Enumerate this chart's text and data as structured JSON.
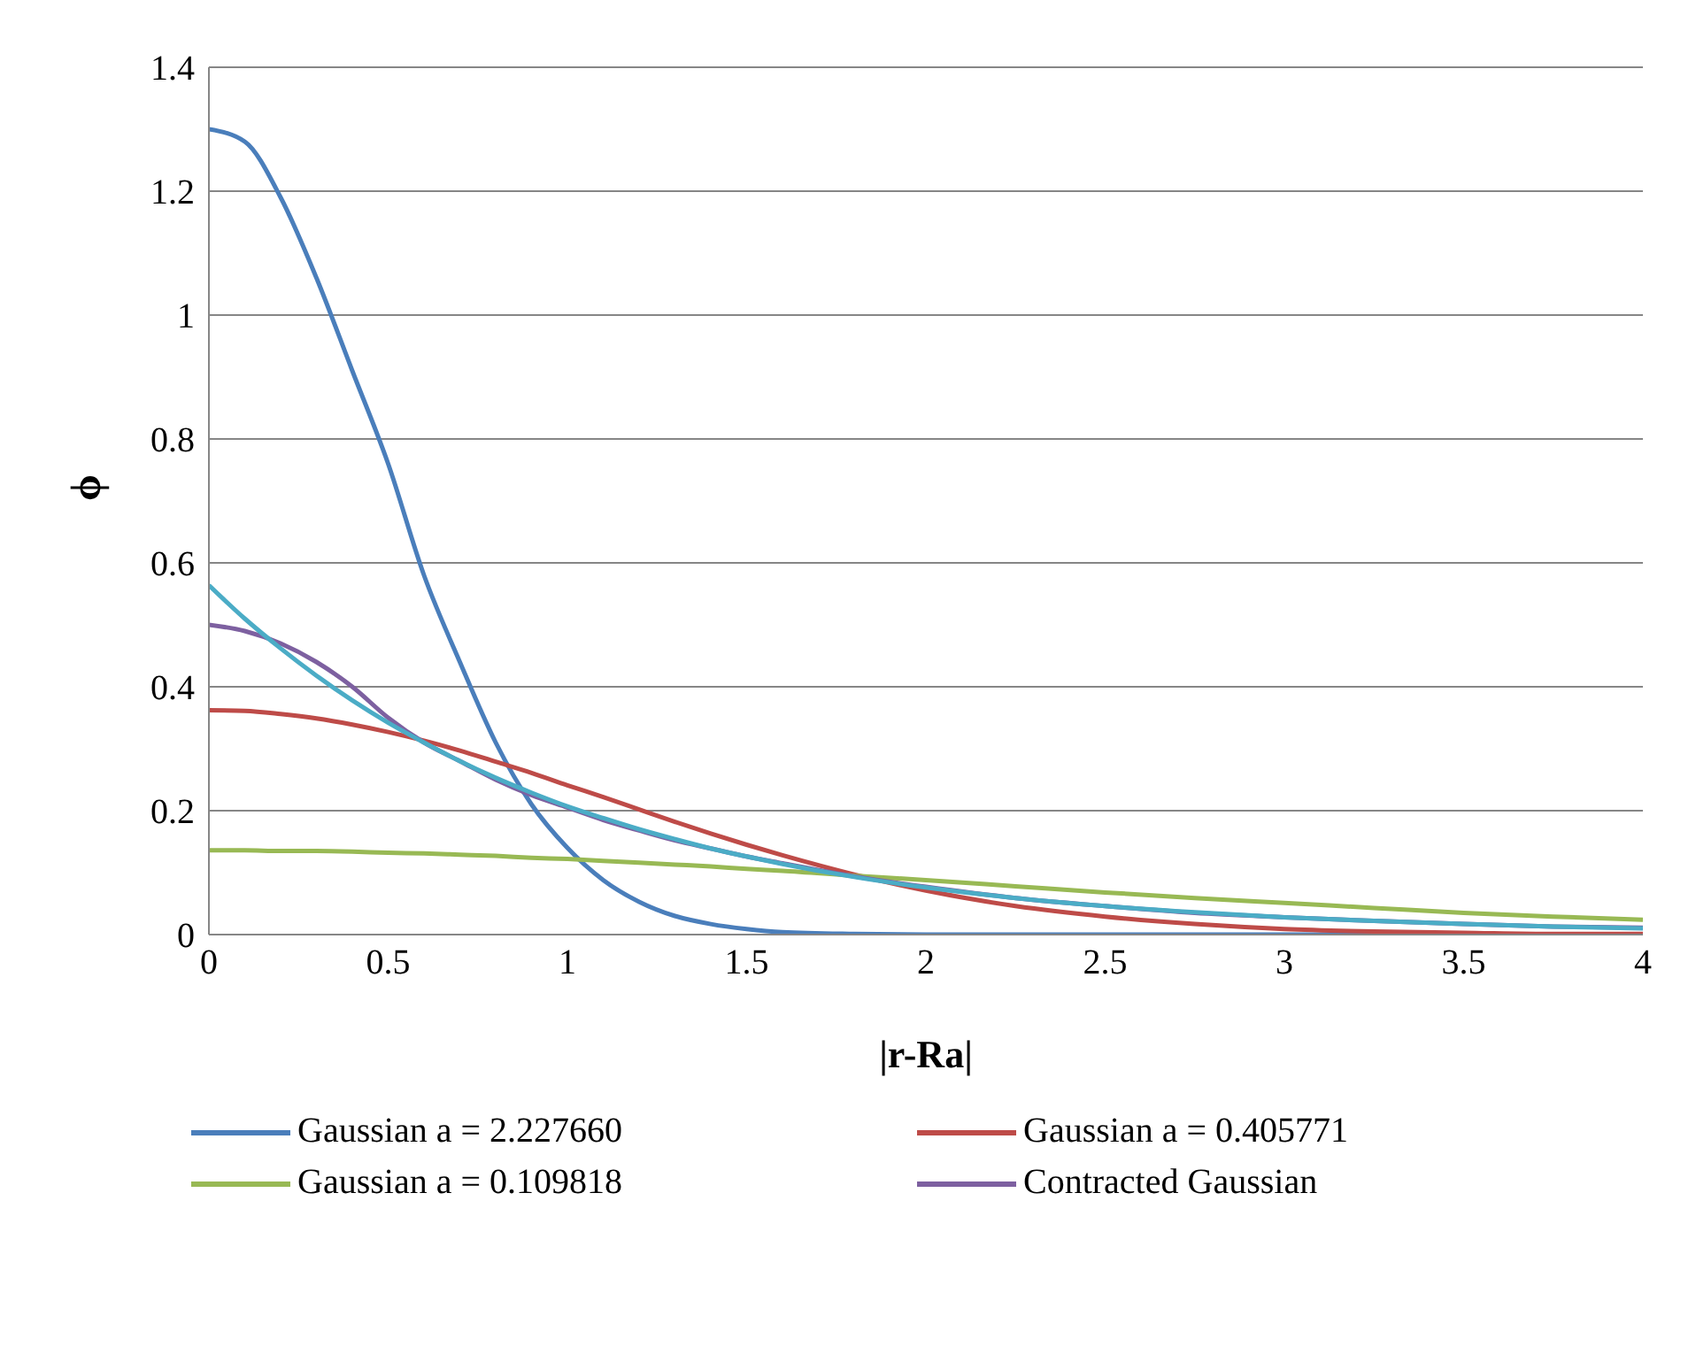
{
  "chart_data": {
    "type": "line",
    "xlabel": "|r-Ra|",
    "ylabel": "ϕ",
    "x": [
      0,
      0.1,
      0.2,
      0.3,
      0.4,
      0.5,
      0.6,
      0.7,
      0.8,
      0.9,
      1,
      1.1,
      1.2,
      1.3,
      1.4,
      1.5,
      1.6,
      1.8,
      2,
      2.25,
      2.5,
      2.75,
      3,
      3.25,
      3.5,
      3.75,
      4
    ],
    "series": [
      {
        "name": "Gaussian a = 2.227660",
        "color": "#4a7ebb",
        "values": [
          1.3,
          1.28,
          1.19,
          1.06,
          0.91,
          0.76,
          0.58,
          0.44,
          0.31,
          0.21,
          0.14,
          0.088,
          0.053,
          0.03,
          0.017,
          0.009,
          0.004,
          0.001,
          0,
          0,
          0,
          0,
          0,
          0,
          0,
          0,
          0
        ]
      },
      {
        "name": "Gaussian a = 0.405771",
        "color": "#be4b48",
        "values": [
          0.362,
          0.361,
          0.356,
          0.349,
          0.339,
          0.327,
          0.313,
          0.297,
          0.279,
          0.261,
          0.241,
          0.222,
          0.202,
          0.182,
          0.163,
          0.145,
          0.128,
          0.097,
          0.071,
          0.046,
          0.029,
          0.017,
          0.009,
          0.005,
          0.003,
          0.001,
          0.001
        ]
      },
      {
        "name": "Gaussian a = 0.109818",
        "color": "#98b954",
        "values": [
          0.136,
          0.136,
          0.135,
          0.135,
          0.134,
          0.132,
          0.131,
          0.129,
          0.127,
          0.124,
          0.122,
          0.119,
          0.116,
          0.113,
          0.11,
          0.106,
          0.103,
          0.095,
          0.088,
          0.078,
          0.068,
          0.059,
          0.051,
          0.043,
          0.035,
          0.029,
          0.024
        ]
      },
      {
        "name": "Contracted Gaussian",
        "color": "#7d60a0",
        "values": [
          0.5,
          0.49,
          0.47,
          0.44,
          0.4,
          0.35,
          0.31,
          0.28,
          0.25,
          0.225,
          0.205,
          0.185,
          0.168,
          0.152,
          0.139,
          0.126,
          0.115,
          0.094,
          0.077,
          0.059,
          0.046,
          0.035,
          0.028,
          0.022,
          0.017,
          0.013,
          0.011
        ]
      },
      {
        "color": "#4bacc6",
        "values": [
          0.564,
          0.51,
          0.462,
          0.418,
          0.378,
          0.342,
          0.31,
          0.28,
          0.253,
          0.229,
          0.207,
          0.188,
          0.17,
          0.154,
          0.139,
          0.126,
          0.114,
          0.093,
          0.076,
          0.059,
          0.046,
          0.036,
          0.028,
          0.022,
          0.017,
          0.013,
          0.01
        ]
      }
    ],
    "xlim": [
      0,
      4
    ],
    "xticks": [
      0,
      0.5,
      1,
      1.5,
      2,
      2.5,
      3,
      3.5,
      4
    ],
    "ylim": [
      0,
      1.4
    ],
    "yticks": [
      0,
      0.2,
      0.4,
      0.6,
      0.8,
      1,
      1.2,
      1.4
    ],
    "grid": "y",
    "legend": "bottom",
    "marker": "none",
    "line_style": "solid"
  }
}
